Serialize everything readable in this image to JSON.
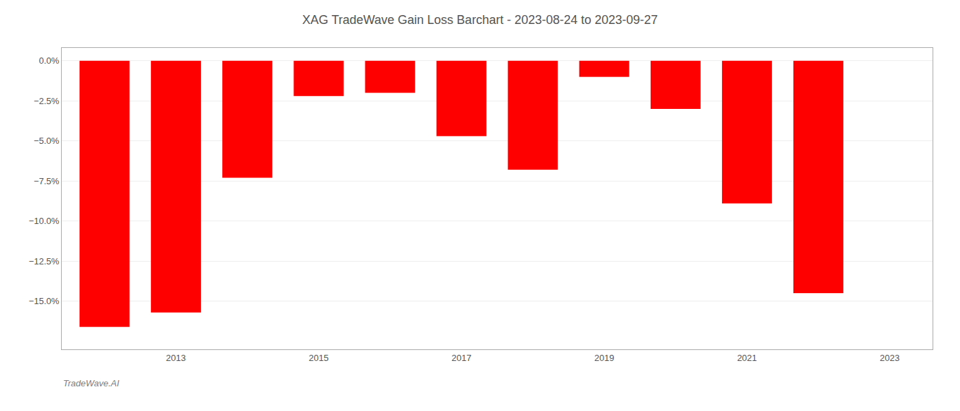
{
  "chart_data": {
    "type": "bar",
    "title": "XAG TradeWave Gain Loss Barchart - 2023-08-24 to 2023-09-27",
    "x": [
      2012,
      2013,
      2014,
      2015,
      2016,
      2017,
      2018,
      2019,
      2020,
      2021,
      2022
    ],
    "values": [
      -0.166,
      -0.157,
      -0.073,
      -0.022,
      -0.02,
      -0.047,
      -0.068,
      -0.01,
      -0.03,
      -0.089,
      -0.145
    ],
    "color": "#ff0000",
    "xlim": [
      2011.4,
      2023.6
    ],
    "xticks": [
      2013,
      2015,
      2017,
      2019,
      2021,
      2023
    ],
    "ylim": [
      -0.18,
      0.008
    ],
    "yticks": [
      {
        "value": 0.0,
        "label": "0.0%"
      },
      {
        "value": -0.025,
        "label": "−2.5%"
      },
      {
        "value": -0.05,
        "label": "−5.0%"
      },
      {
        "value": -0.075,
        "label": "−7.5%"
      },
      {
        "value": -0.1,
        "label": "−10.0%"
      },
      {
        "value": -0.125,
        "label": "−12.5%"
      },
      {
        "value": -0.15,
        "label": "−15.0%"
      }
    ],
    "grid": "y",
    "annotations": [
      {
        "text": "TradeWave.AI"
      }
    ]
  }
}
